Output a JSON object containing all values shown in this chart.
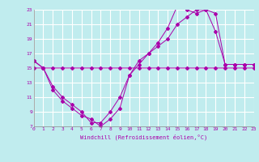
{
  "xlabel": "Windchill (Refroidissement éolien,°C)",
  "bg_color": "#c0ecee",
  "grid_color": "#ffffff",
  "line_color": "#aa00aa",
  "xmin": 0,
  "xmax": 23,
  "ymin": 7,
  "ymax": 23,
  "yticks": [
    7,
    9,
    11,
    13,
    15,
    17,
    19,
    21,
    23
  ],
  "xticks": [
    0,
    1,
    2,
    3,
    4,
    5,
    6,
    7,
    8,
    9,
    10,
    11,
    12,
    13,
    14,
    15,
    16,
    17,
    18,
    19,
    20,
    21,
    22,
    23
  ],
  "line1_x": [
    0,
    1,
    2,
    3,
    4,
    5,
    6,
    7,
    8,
    9,
    10,
    11,
    12,
    13,
    14,
    15,
    16,
    17,
    18,
    19,
    20,
    21,
    22,
    23
  ],
  "line1_y": [
    16,
    15,
    15,
    15,
    15,
    15,
    15,
    15,
    15,
    15,
    15,
    15,
    15,
    15,
    15,
    15,
    15,
    15,
    15,
    15,
    15,
    15,
    15,
    15
  ],
  "line2_x": [
    0,
    1,
    2,
    3,
    4,
    5,
    6,
    7,
    8,
    9,
    10,
    11,
    12,
    13,
    14,
    15,
    16,
    17,
    18,
    19,
    20,
    21,
    22,
    23
  ],
  "line2_y": [
    16,
    15,
    12.5,
    11,
    10,
    9,
    7.5,
    7.5,
    9,
    11,
    14,
    16,
    17,
    18,
    19,
    21,
    22,
    23,
    23,
    22.5,
    15.5,
    15.5,
    15.5,
    15.5
  ],
  "line3_x": [
    0,
    1,
    2,
    3,
    4,
    5,
    6,
    7,
    8,
    9,
    10,
    11,
    12,
    13,
    14,
    15,
    16,
    17,
    18,
    19,
    20,
    21,
    22,
    23
  ],
  "line3_y": [
    15,
    15,
    12,
    10.5,
    9.5,
    8.5,
    8,
    7,
    8,
    9.5,
    14,
    15.5,
    17,
    18.5,
    20.5,
    23.5,
    23,
    22.5,
    23,
    20,
    15.5,
    15.5,
    15.5,
    15.5
  ]
}
